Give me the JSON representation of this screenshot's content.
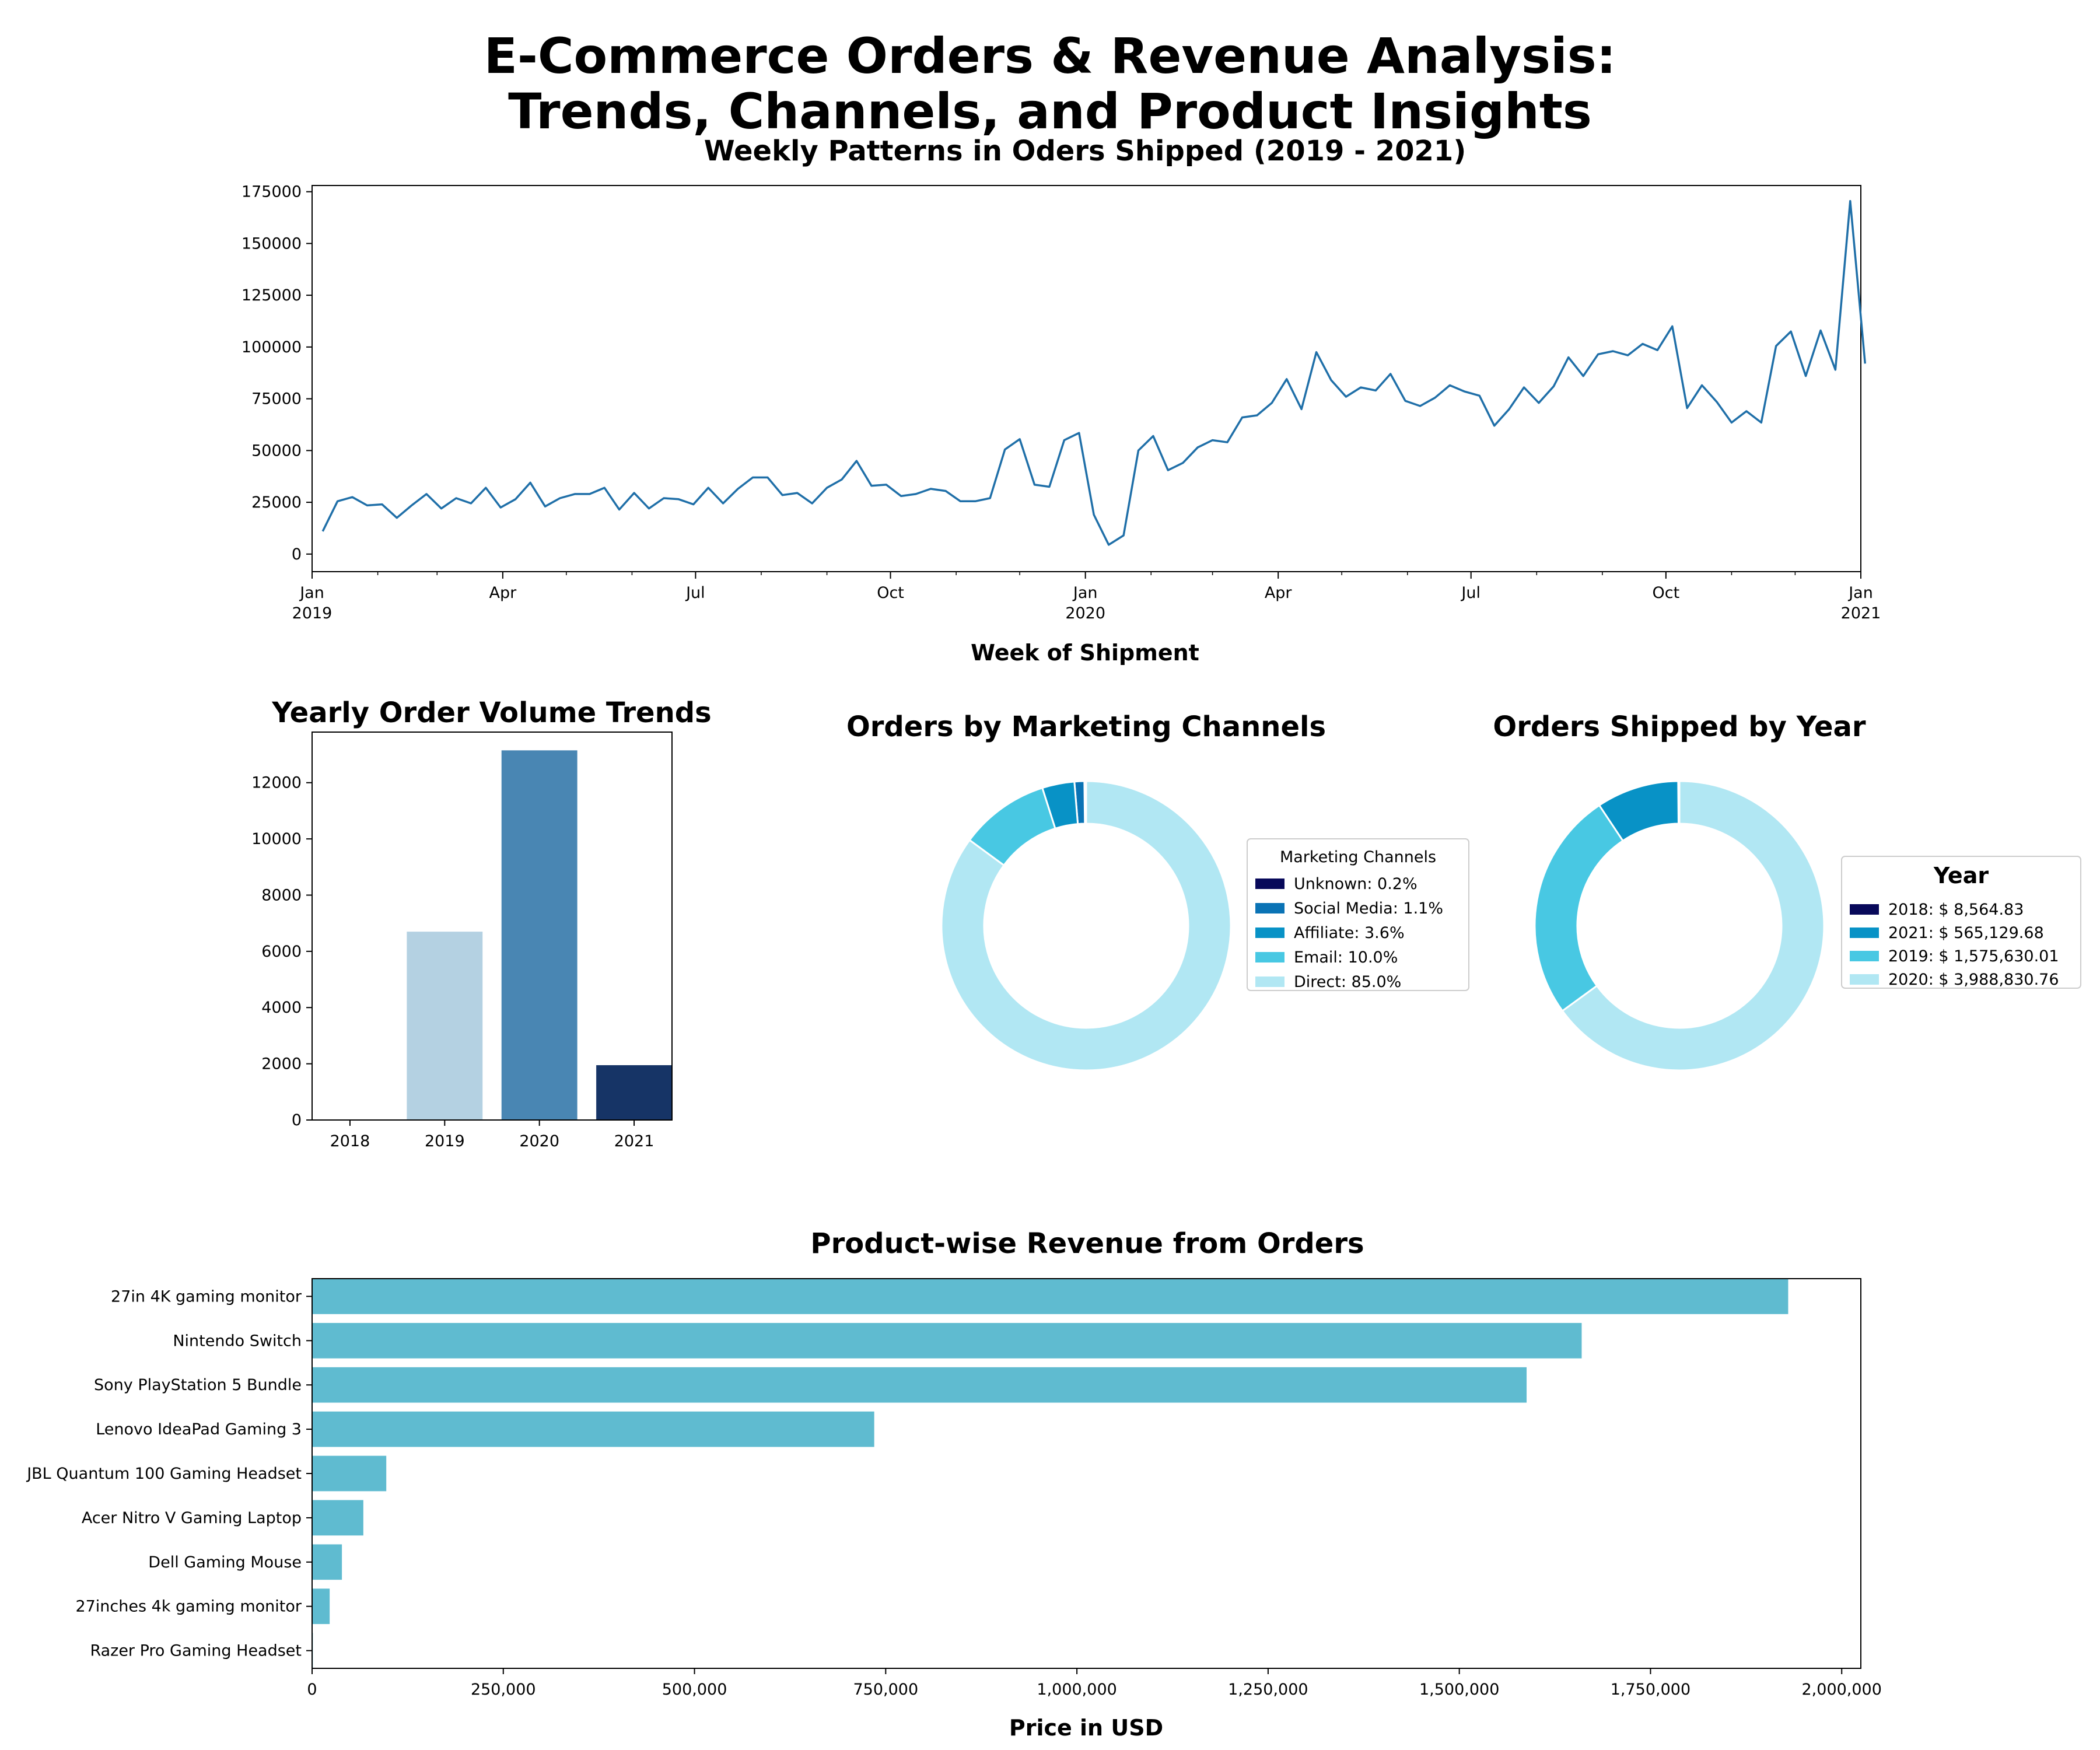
{
  "title_line1": "E-Commerce Orders & Revenue Analysis:",
  "title_line2": "Trends, Channels, and Product Insights",
  "colors": {
    "line": "#1f6fa8",
    "bar_h": "#5fbbd0",
    "navy": "#08095a",
    "c1": "#0a73b5",
    "c2": "#0892c6",
    "c3": "#48c8e3",
    "c4": "#b1e7f3"
  },
  "chart_data": [
    {
      "type": "line",
      "title": "Weekly Patterns in Oders Shipped (2019 - 2021)",
      "xlabel": "Week of Shipment",
      "ylabel": "",
      "x_start": "2019-01-06",
      "x_step_days": 7,
      "xlim": [
        "2019-01-01",
        "2021-01-01"
      ],
      "ylim": [
        -8500,
        178000
      ],
      "yticks": [
        0,
        25000,
        50000,
        75000,
        100000,
        125000,
        150000,
        175000
      ],
      "xticks": [
        {
          "date": "2019-01-01",
          "label": "Jan",
          "sublabel": "2019"
        },
        {
          "date": "2019-04-01",
          "label": "Apr",
          "sublabel": ""
        },
        {
          "date": "2019-07-01",
          "label": "Jul",
          "sublabel": ""
        },
        {
          "date": "2019-10-01",
          "label": "Oct",
          "sublabel": ""
        },
        {
          "date": "2020-01-01",
          "label": "Jan",
          "sublabel": "2020"
        },
        {
          "date": "2020-04-01",
          "label": "Apr",
          "sublabel": ""
        },
        {
          "date": "2020-07-01",
          "label": "Jul",
          "sublabel": ""
        },
        {
          "date": "2020-10-01",
          "label": "Oct",
          "sublabel": ""
        },
        {
          "date": "2021-01-01",
          "label": "Jan",
          "sublabel": "2021"
        }
      ],
      "values": [
        11000,
        25500,
        27500,
        23500,
        24000,
        17500,
        23500,
        29000,
        22000,
        27000,
        24500,
        32000,
        22500,
        26500,
        34500,
        23000,
        27000,
        29000,
        29000,
        32000,
        21500,
        29500,
        22000,
        27000,
        26500,
        24000,
        32000,
        24500,
        31500,
        37000,
        37000,
        28500,
        29500,
        24500,
        32000,
        36000,
        45000,
        33000,
        33500,
        28000,
        29000,
        31500,
        30500,
        25500,
        25500,
        27000,
        50500,
        55500,
        33500,
        32500,
        55000,
        58500,
        19000,
        4500,
        9000,
        50000,
        57000,
        40500,
        44000,
        51500,
        55000,
        54000,
        66000,
        67000,
        73000,
        84500,
        70000,
        97500,
        84000,
        76000,
        80500,
        79000,
        87000,
        74000,
        71500,
        75500,
        81500,
        78500,
        76500,
        62000,
        70000,
        80500,
        73000,
        81000,
        95000,
        86000,
        96500,
        98000,
        96000,
        101500,
        98500,
        110000,
        70500,
        81500,
        73500,
        63500,
        69000,
        63500,
        100500,
        107500,
        86000,
        108000,
        89000,
        170500,
        92000
      ]
    },
    {
      "type": "bar",
      "title": "Yearly Order Volume Trends",
      "categories": [
        "2018",
        "2019",
        "2020",
        "2021"
      ],
      "values": [
        10,
        6700,
        13150,
        1950
      ],
      "bar_colors": [
        "#08306b",
        "#b4d1e2",
        "#4986b3",
        "#163466"
      ],
      "ylim": [
        0,
        13800
      ],
      "yticks": [
        0,
        2000,
        4000,
        6000,
        8000,
        10000,
        12000
      ],
      "xlabel": "",
      "ylabel": ""
    },
    {
      "type": "pie",
      "title": "Orders by Marketing Channels",
      "legend_title": "Marketing Channels",
      "legend_position": "right",
      "labels": [
        "Unknown:   0.2%",
        "Social Media:   1.1%",
        "Affiliate:   3.6%",
        "Email:   10.0%",
        "Direct:   85.0%"
      ],
      "values": [
        0.2,
        1.1,
        3.6,
        10.0,
        85.0
      ],
      "colors": [
        "#08095a",
        "#0a73b5",
        "#0892c6",
        "#48c8e3",
        "#b1e7f3"
      ]
    },
    {
      "type": "pie",
      "title": "Orders Shipped by Year",
      "legend_title": "Year",
      "legend_position": "right",
      "labels": [
        "2018:  $ 8,564.83",
        "2021:  $ 565,129.68",
        "2019:  $ 1,575,630.01",
        "2020:  $ 3,988,830.76"
      ],
      "values": [
        8564.83,
        565129.68,
        1575630.01,
        3988830.76
      ],
      "colors": [
        "#08095a",
        "#0892c6",
        "#48c8e3",
        "#b1e7f3"
      ]
    },
    {
      "type": "bar",
      "orientation": "horizontal",
      "title": "Product-wise Revenue from Orders",
      "xlabel": "Price in USD",
      "ylabel": "",
      "categories": [
        "27in 4K gaming monitor",
        "Nintendo Switch",
        "Sony PlayStation 5 Bundle",
        "Lenovo IdeaPad Gaming 3",
        "JBL Quantum 100 Gaming Headset",
        "Acer Nitro V Gaming Laptop",
        "Dell Gaming Mouse",
        "27inches 4k gaming monitor",
        "Razer Pro Gaming Headset"
      ],
      "values": [
        1930000,
        1660000,
        1588000,
        735000,
        97000,
        67000,
        39000,
        23000,
        1000
      ],
      "xlim": [
        0,
        2025000
      ],
      "xticks": [
        0,
        250000,
        500000,
        750000,
        1000000,
        1250000,
        1500000,
        1750000,
        2000000
      ],
      "xtick_labels": [
        "0",
        "250,000",
        "500,000",
        "750,000",
        "1,000,000",
        "1,250,000",
        "1,500,000",
        "1,750,000",
        "2,000,000"
      ]
    }
  ]
}
